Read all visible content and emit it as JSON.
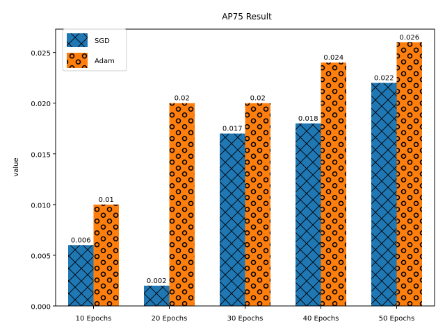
{
  "chart_data": {
    "type": "bar",
    "title": "AP75 Result",
    "xlabel": "",
    "ylabel": "value",
    "categories": [
      "10 Epochs",
      "20 Epochs",
      "30 Epochs",
      "40 Epochs",
      "50 Epochs"
    ],
    "series": [
      {
        "name": "SGD",
        "values": [
          0.006,
          0.002,
          0.017,
          0.018,
          0.022
        ],
        "labels": [
          "0.006",
          "0.002",
          "0.017",
          "0.018",
          "0.022"
        ],
        "color": "#1f77b4",
        "hatch": "cross"
      },
      {
        "name": "Adam",
        "values": [
          0.01,
          0.02,
          0.02,
          0.024,
          0.026
        ],
        "labels": [
          "0.01",
          "0.02",
          "0.02",
          "0.024",
          "0.026"
        ],
        "color": "#ff7f0e",
        "hatch": "circles"
      }
    ],
    "ylim": [
      0,
      0.0273
    ],
    "yticks": [
      0.0,
      0.005,
      0.01,
      0.015,
      0.02,
      0.025
    ],
    "ytick_labels": [
      "0.000",
      "0.005",
      "0.010",
      "0.015",
      "0.020",
      "0.025"
    ],
    "legend_position": "top-left",
    "grid": false
  }
}
